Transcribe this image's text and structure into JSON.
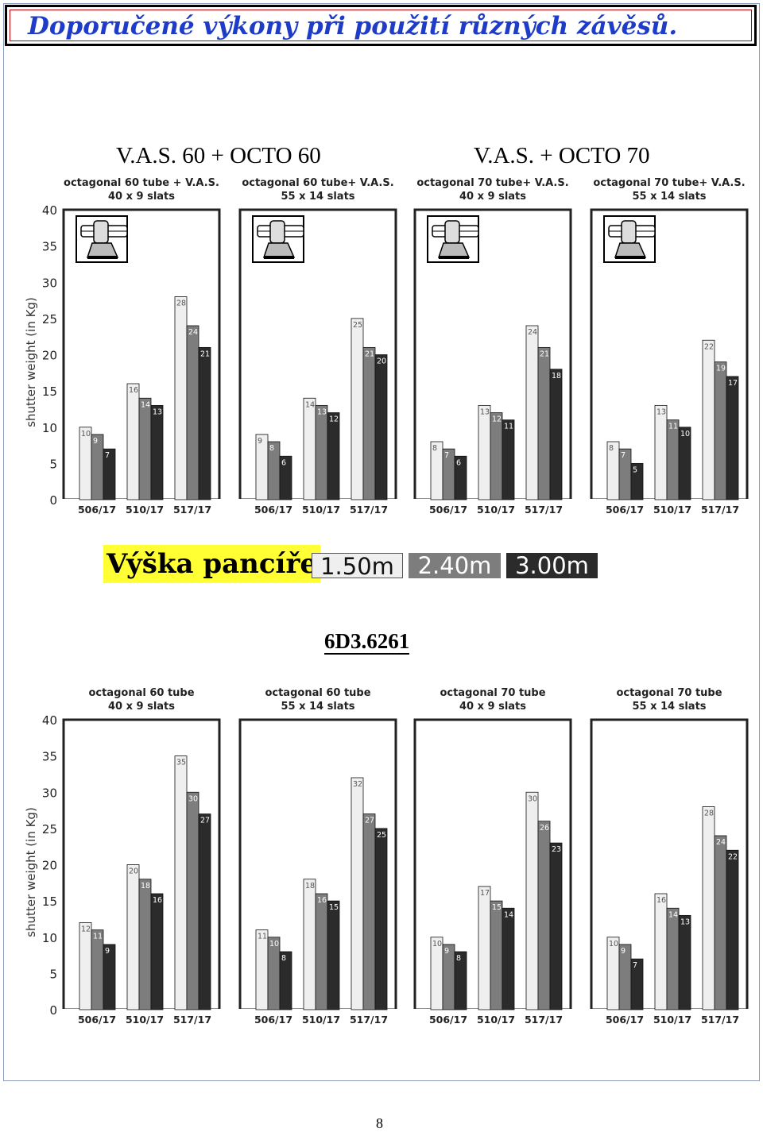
{
  "title": "Doporučené výkony při použití různých závěsů.",
  "group_headings": [
    "V.A.S. 60 + OCTO 60",
    "V.A.S. + OCTO 70"
  ],
  "legend": {
    "label": "Výška pancíře",
    "items": [
      {
        "text": "1.50m",
        "color": "#efefef"
      },
      {
        "text": "2.40m",
        "color": "#7d7d7d"
      },
      {
        "text": "3.00m",
        "color": "#2b2b2b"
      }
    ]
  },
  "code": "6D3.6261",
  "page_number": "8",
  "chart_data": [
    {
      "type": "bar",
      "ylabel": "shutter weight (in Kg)",
      "ylim": [
        0,
        40
      ],
      "yticks": [
        0,
        5,
        10,
        15,
        20,
        25,
        30,
        35,
        40
      ],
      "series_names": [
        "1.50m",
        "2.40m",
        "3.00m"
      ],
      "icon": "bracket-icon",
      "panels": [
        {
          "title1": "octagonal 60 tube + V.A.S.",
          "title2": "40 x 9 slats",
          "categories": [
            "506/17",
            "510/17",
            "517/17"
          ],
          "values": [
            [
              10,
              9,
              7
            ],
            [
              16,
              14,
              13
            ],
            [
              28,
              24,
              21
            ]
          ]
        },
        {
          "title1": "octagonal 60 tube+ V.A.S.",
          "title2": "55 x 14 slats",
          "categories": [
            "506/17",
            "510/17",
            "517/17"
          ],
          "values": [
            [
              9,
              8,
              6
            ],
            [
              14,
              13,
              12
            ],
            [
              25,
              21,
              20
            ]
          ]
        },
        {
          "title1": "octagonal 70 tube+ V.A.S.",
          "title2": "40 x 9 slats",
          "categories": [
            "506/17",
            "510/17",
            "517/17"
          ],
          "values": [
            [
              8,
              7,
              6
            ],
            [
              13,
              12,
              11
            ],
            [
              24,
              21,
              18
            ]
          ]
        },
        {
          "title1": "octagonal 70 tube+ V.A.S.",
          "title2": "55 x 14 slats",
          "categories": [
            "506/17",
            "510/17",
            "517/17"
          ],
          "values": [
            [
              8,
              7,
              5
            ],
            [
              13,
              11,
              10
            ],
            [
              22,
              19,
              17
            ]
          ]
        }
      ]
    },
    {
      "type": "bar",
      "ylabel": "shutter weight (in Kg)",
      "ylim": [
        0,
        40
      ],
      "yticks": [
        0,
        5,
        10,
        15,
        20,
        25,
        30,
        35,
        40
      ],
      "series_names": [
        "1.50m",
        "2.40m",
        "3.00m"
      ],
      "icon": "",
      "panels": [
        {
          "title1": "octagonal 60 tube",
          "title2": "40 x 9 slats",
          "categories": [
            "506/17",
            "510/17",
            "517/17"
          ],
          "values": [
            [
              12,
              11,
              9
            ],
            [
              20,
              18,
              16
            ],
            [
              35,
              30,
              27
            ]
          ]
        },
        {
          "title1": "octagonal 60 tube",
          "title2": "55 x 14 slats",
          "categories": [
            "506/17",
            "510/17",
            "517/17"
          ],
          "values": [
            [
              11,
              10,
              8
            ],
            [
              18,
              16,
              15
            ],
            [
              32,
              27,
              25
            ]
          ]
        },
        {
          "title1": "octagonal 70 tube",
          "title2": "40 x 9 slats",
          "categories": [
            "506/17",
            "510/17",
            "517/17"
          ],
          "values": [
            [
              10,
              9,
              8
            ],
            [
              17,
              15,
              14
            ],
            [
              30,
              26,
              23
            ]
          ]
        },
        {
          "title1": "octagonal 70 tube",
          "title2": "55 x 14 slats",
          "categories": [
            "506/17",
            "510/17",
            "517/17"
          ],
          "values": [
            [
              10,
              9,
              7
            ],
            [
              16,
              14,
              13
            ],
            [
              28,
              24,
              22
            ]
          ]
        }
      ]
    }
  ]
}
